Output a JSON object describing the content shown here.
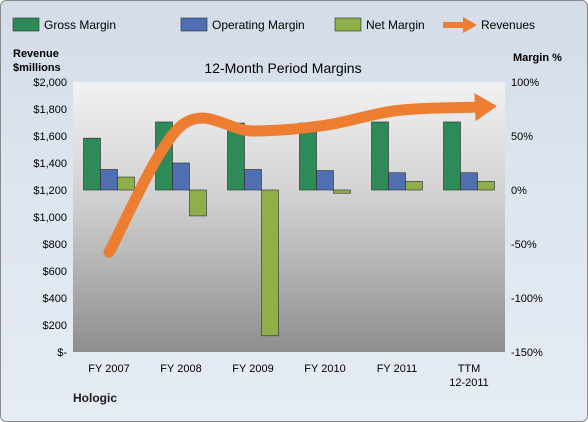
{
  "chart_data": {
    "type": "bar",
    "title": "12-Month Period Margins",
    "company": "Hologic",
    "categories": [
      "FY 2007",
      "FY 2008",
      "FY 2009",
      "FY 2010",
      "FY 2011",
      "TTM 12-2011"
    ],
    "left_axis": {
      "label_line1": "Revenue",
      "label_line2": "$millions",
      "min": 0,
      "max": 2000,
      "step": 200,
      "tick_labels": [
        "$-",
        "$200",
        "$400",
        "$600",
        "$800",
        "$1,000",
        "$1,200",
        "$1,400",
        "$1,600",
        "$1,800",
        "$2,000"
      ]
    },
    "right_axis": {
      "label": "Margin %",
      "min": -150,
      "max": 100,
      "step": 50,
      "tick_labels": [
        "-150%",
        "-100%",
        "-50%",
        "0%",
        "50%",
        "100%"
      ]
    },
    "series": [
      {
        "name": "Gross Margin",
        "axis": "right",
        "type": "bar",
        "color": "#2e8b57",
        "values": [
          48,
          63,
          62,
          62,
          63,
          63
        ]
      },
      {
        "name": "Operating Margin",
        "axis": "right",
        "type": "bar",
        "color": "#4f6fb0",
        "values": [
          19,
          25,
          19,
          18,
          16,
          16
        ]
      },
      {
        "name": "Net Margin",
        "axis": "right",
        "type": "bar",
        "color": "#8faf4a",
        "values": [
          12,
          -24,
          -135,
          -3,
          8,
          8
        ]
      },
      {
        "name": "Revenues",
        "axis": "left",
        "type": "line",
        "color": "#ed7d31",
        "values": [
          738,
          1675,
          1637,
          1679,
          1789,
          1812
        ]
      }
    ],
    "legend_position": "top",
    "grid": false
  }
}
